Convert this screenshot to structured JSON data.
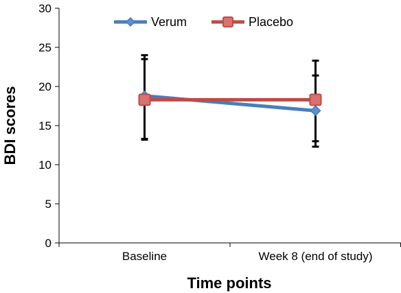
{
  "chart_data": {
    "type": "line",
    "categories": [
      "Baseline",
      "Week 8 (end of study)"
    ],
    "series": [
      {
        "name": "Verum",
        "values": [
          18.8,
          16.9
        ],
        "error_upper": [
          23.5,
          21.4
        ],
        "error_lower": [
          13.3,
          13.0
        ],
        "color": "#4a7ebb",
        "marker": "diamond"
      },
      {
        "name": "Placebo",
        "values": [
          18.3,
          18.3
        ],
        "error_upper": [
          24.0,
          23.3
        ],
        "error_lower": [
          13.2,
          12.3
        ],
        "color": "#be4b48",
        "marker": "square"
      }
    ],
    "title": "",
    "xlabel": "Time points",
    "ylabel": "BDI scores",
    "ylim": [
      0,
      30
    ],
    "yticks": [
      0,
      5,
      10,
      15,
      20,
      25,
      30
    ],
    "grid": false,
    "legend_position": "top"
  }
}
